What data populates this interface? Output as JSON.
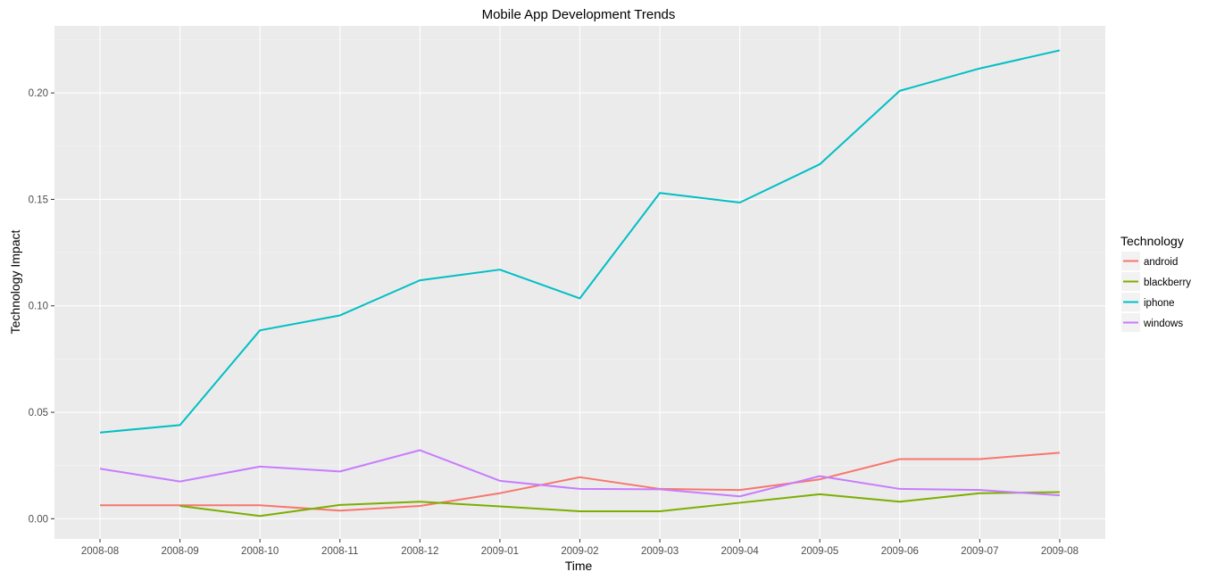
{
  "chart_data": {
    "type": "line",
    "title": "Mobile App Development Trends",
    "xlabel": "Time",
    "ylabel": "Technology Impact",
    "categories": [
      "2008-08",
      "2008-09",
      "2008-10",
      "2008-11",
      "2008-12",
      "2009-01",
      "2009-02",
      "2009-03",
      "2009-04",
      "2009-05",
      "2009-06",
      "2009-07",
      "2009-08"
    ],
    "ylim": [
      -0.0095,
      0.2315
    ],
    "yticks": [
      0.0,
      0.05,
      0.1,
      0.15,
      0.2
    ],
    "ytick_labels": [
      "0.00",
      "0.05",
      "0.10",
      "0.15",
      "0.20"
    ],
    "grid": true,
    "legend": {
      "title": "Technology",
      "placement": "right"
    },
    "series": [
      {
        "name": "android",
        "color": "#F8766D",
        "values": [
          0.0063,
          0.0063,
          0.0063,
          0.0038,
          0.006,
          0.012,
          0.0195,
          0.014,
          0.0135,
          0.0185,
          0.028,
          0.028,
          0.031
        ]
      },
      {
        "name": "blackberry",
        "color": "#7CAE00",
        "values": [
          null,
          0.006,
          0.0013,
          0.0065,
          0.008,
          0.0058,
          0.0035,
          0.0035,
          0.0075,
          0.0115,
          0.008,
          0.012,
          0.0125
        ]
      },
      {
        "name": "iphone",
        "color": "#00BFC4",
        "values": [
          0.0405,
          0.044,
          0.0885,
          0.0955,
          0.112,
          0.117,
          0.1035,
          0.153,
          0.1485,
          0.1665,
          0.201,
          0.2115,
          0.22
        ]
      },
      {
        "name": "windows",
        "color": "#C77CFF",
        "values": [
          0.0235,
          0.0175,
          0.0245,
          0.0222,
          0.0322,
          0.0178,
          0.014,
          0.0138,
          0.0105,
          0.02,
          0.014,
          0.0135,
          0.011
        ]
      }
    ]
  }
}
